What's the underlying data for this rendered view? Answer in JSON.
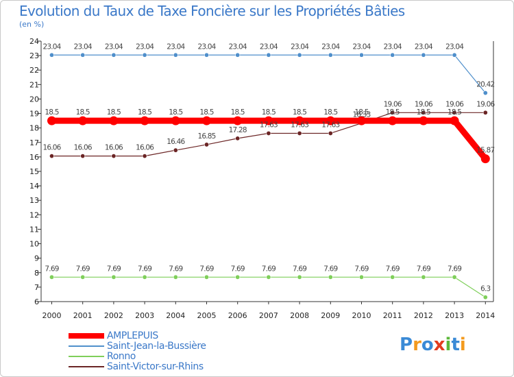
{
  "title": "Evolution du Taux de Taxe Foncière sur les Propriétés Bâties",
  "subtitle": "(en %)",
  "logo": {
    "text": "Proxiti",
    "letter_colors": [
      "#3a8ad6",
      "#f39a1e",
      "#3a8ad6",
      "#e23c1e",
      "#5bb83a",
      "#3a8ad6",
      "#f39a1e"
    ]
  },
  "chart_data": {
    "type": "line",
    "title": "Evolution du Taux de Taxe Foncière sur les Propriétés Bâties",
    "ylabel": "(en %)",
    "xlabel": "",
    "x": [
      2000,
      2001,
      2002,
      2003,
      2004,
      2005,
      2006,
      2007,
      2008,
      2009,
      2010,
      2011,
      2012,
      2013,
      2014
    ],
    "ylim": [
      6,
      24
    ],
    "yticks": [
      6,
      7,
      8,
      9,
      10,
      11,
      12,
      13,
      14,
      15,
      16,
      17,
      18,
      19,
      20,
      21,
      22,
      23,
      24
    ],
    "grid": false,
    "legend_position": "bottom-left",
    "series": [
      {
        "name": "AMPLEPUIS",
        "color": "#ff0000",
        "emphasis": "thick",
        "values": [
          18.5,
          18.5,
          18.5,
          18.5,
          18.5,
          18.5,
          18.5,
          18.5,
          18.5,
          18.5,
          18.5,
          18.5,
          18.5,
          18.5,
          15.87
        ],
        "labels": [
          "18.5",
          "18.5",
          "18.5",
          "18.5",
          "18.5",
          "18.5",
          "18.5",
          "18.5",
          "18.5",
          "18.5",
          "18.5",
          "18.5",
          "18.5",
          "18.5",
          "15.87"
        ]
      },
      {
        "name": "Saint-Jean-la-Bussière",
        "color": "#4f8fcb",
        "values": [
          23.04,
          23.04,
          23.04,
          23.04,
          23.04,
          23.04,
          23.04,
          23.04,
          23.04,
          23.04,
          23.04,
          23.04,
          23.04,
          23.04,
          20.42
        ],
        "labels": [
          "23.04",
          "23.04",
          "23.04",
          "23.04",
          "23.04",
          "23.04",
          "23.04",
          "23.04",
          "23.04",
          "23.04",
          "23.04",
          "23.04",
          "23.04",
          "23.04",
          "20.42"
        ]
      },
      {
        "name": "Ronno",
        "color": "#7fcf5a",
        "values": [
          7.69,
          7.69,
          7.69,
          7.69,
          7.69,
          7.69,
          7.69,
          7.69,
          7.69,
          7.69,
          7.69,
          7.69,
          7.69,
          7.69,
          6.3
        ],
        "labels": [
          "7.69",
          "7.69",
          "7.69",
          "7.69",
          "7.69",
          "7.69",
          "7.69",
          "7.69",
          "7.69",
          "7.69",
          "7.69",
          "7.69",
          "7.69",
          "7.69",
          "6.3"
        ]
      },
      {
        "name": "Saint-Victor-sur-Rhins",
        "color": "#6b2525",
        "values": [
          16.06,
          16.06,
          16.06,
          16.06,
          16.46,
          16.85,
          17.28,
          17.63,
          17.63,
          17.63,
          18.33,
          19.06,
          19.06,
          19.06,
          19.06
        ],
        "labels": [
          "16.06",
          "16.06",
          "16.06",
          "16.06",
          "16.46",
          "16.85",
          "17.28",
          "17.63",
          "17.63",
          "17.63",
          "18.33",
          "19.06",
          "19.06",
          "19.06",
          "19.06"
        ]
      }
    ]
  }
}
